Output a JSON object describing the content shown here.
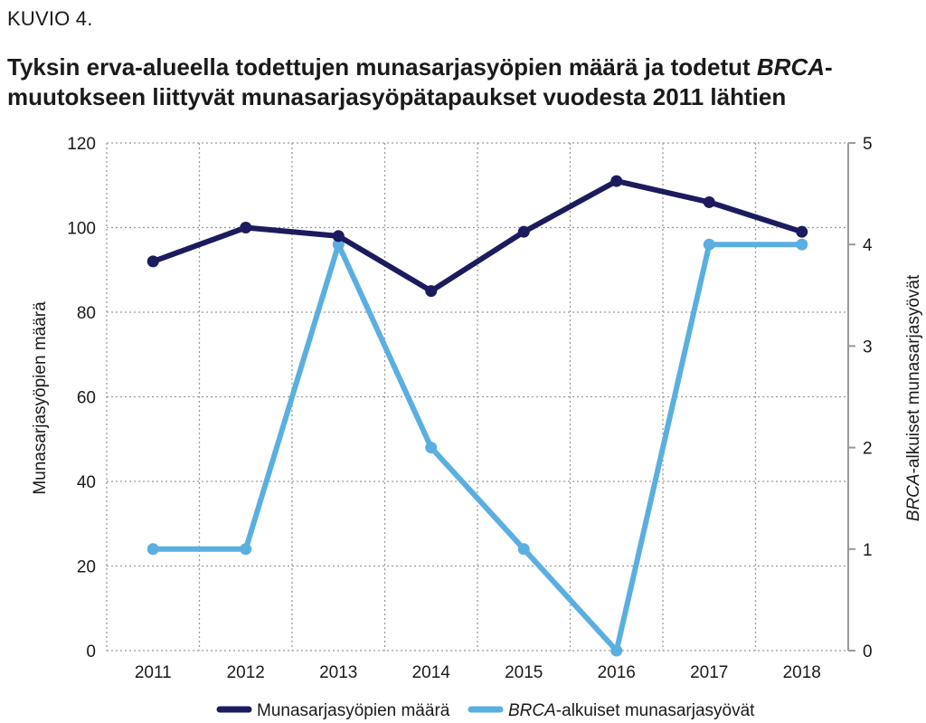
{
  "figure_label": "KUVIO 4.",
  "title": {
    "before": "Tyksin erva-alueella todettujen munasarjasyöpien määrä ja todetut ",
    "italic": "BRCA",
    "after": "-muutokseen liittyvät munasarjasyöpätapaukset vuodesta 2011 lähtien"
  },
  "chart_data": {
    "type": "line",
    "categories": [
      "2011",
      "2012",
      "2013",
      "2014",
      "2015",
      "2016",
      "2017",
      "2018"
    ],
    "ylabel_left": "Munasarjasyöpien määrä",
    "ylabel_right": {
      "italic": "BRCA",
      "rest": "-alkuiset munasarjasyövät"
    },
    "ylim_left": [
      0,
      120
    ],
    "yticks_left": [
      0,
      20,
      40,
      60,
      80,
      100,
      120
    ],
    "ylim_right": [
      0,
      5
    ],
    "yticks_right": [
      0,
      1,
      2,
      3,
      4,
      5
    ],
    "grid": true,
    "legend_position": "bottom",
    "series": [
      {
        "name": "Munasarjasyöpien määrä",
        "axis": "left",
        "color": "#1c1b5e",
        "values": [
          92,
          100,
          98,
          85,
          99,
          111,
          106,
          99
        ]
      },
      {
        "name_italic": "BRCA",
        "name_rest": "-alkuiset munasarjasyövät",
        "axis": "right",
        "color": "#5aafe0",
        "values": [
          1,
          1,
          4,
          2,
          1,
          0,
          4,
          4
        ]
      }
    ]
  }
}
